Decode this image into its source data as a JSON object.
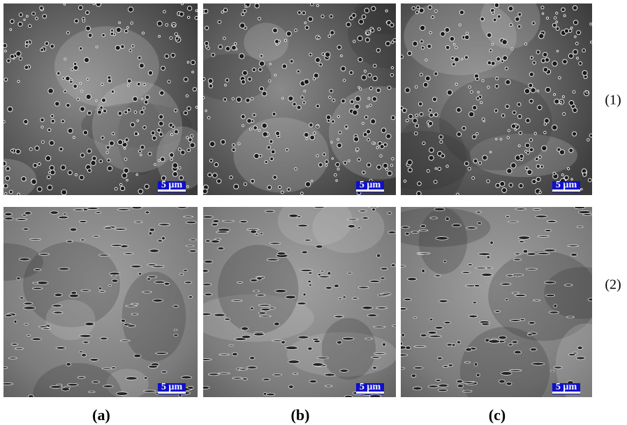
{
  "rows": [
    {
      "label": "(1)",
      "scale_bars": [
        "5 µm",
        "5 µm",
        "5 µm"
      ]
    },
    {
      "label": "(2)",
      "scale_bars": [
        "5 µm",
        "5 µm",
        "5 µm"
      ]
    }
  ],
  "columns": [
    "(a)",
    "(b)",
    "(c)"
  ]
}
